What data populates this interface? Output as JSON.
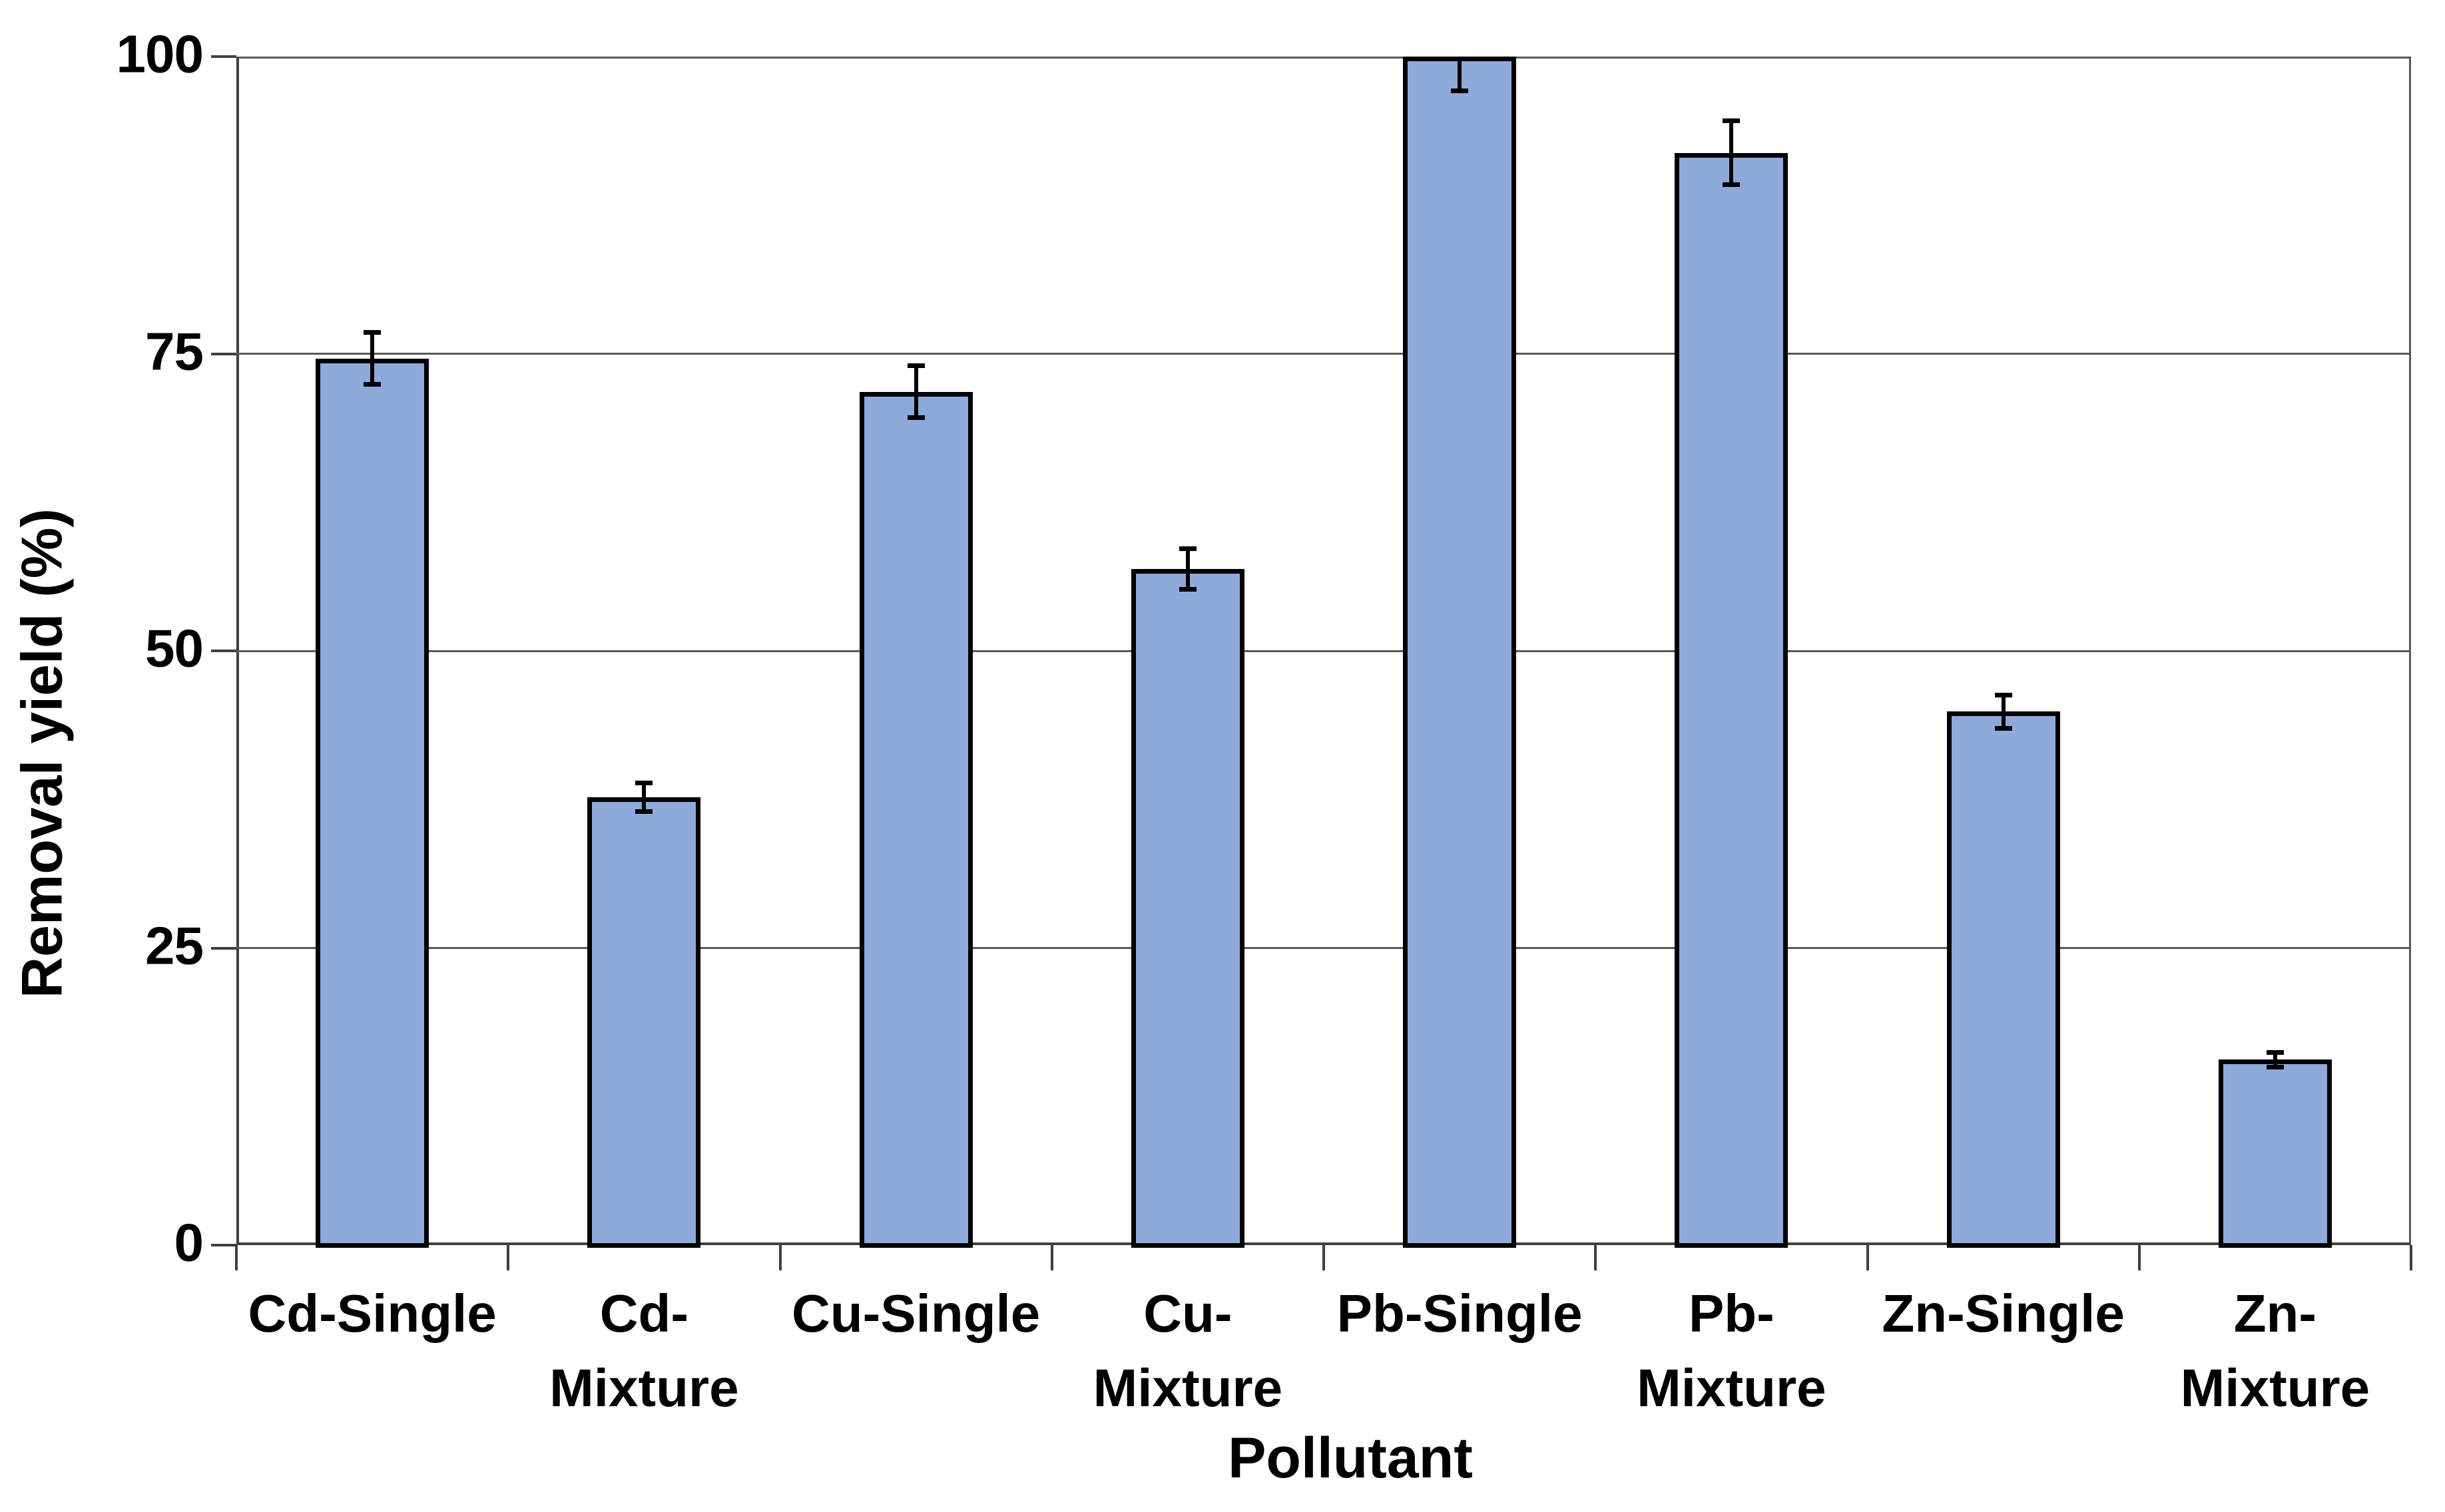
{
  "chart_data": {
    "type": "bar",
    "title": "",
    "xlabel": "Pollutant",
    "ylabel": "Removal yield (%)",
    "categories": [
      "Cd-Single",
      "Cd-Mixture",
      "Cu-Single",
      "Cu-Mixture",
      "Pb-Single",
      "Pb-Mixture",
      "Zn-Single",
      "Zn-Mixture"
    ],
    "category_label_lines": [
      [
        "Cd-Single"
      ],
      [
        "Cd-",
        "Mixture"
      ],
      [
        "Cu-Single"
      ],
      [
        "Cu-",
        "Mixture"
      ],
      [
        "Pb-Single"
      ],
      [
        "Pb-",
        "Mixture"
      ],
      [
        "Zn-Single"
      ],
      [
        "Zn-",
        "Mixture"
      ]
    ],
    "series": [
      {
        "name": "Removal yield",
        "values": [
          74.6,
          37.7,
          71.8,
          56.9,
          100,
          91.9,
          44.9,
          15.6
        ],
        "errors": [
          2.2,
          1.2,
          2.2,
          1.7,
          2.9,
          2.7,
          1.4,
          0.6
        ]
      }
    ],
    "ylim": [
      0,
      100
    ],
    "yticks": [
      "0",
      "25",
      "50",
      "75",
      "100"
    ],
    "ytick_values": [
      0,
      25,
      50,
      75,
      100
    ],
    "grid": "horizontal gridlines at 25, 50, 75, 100",
    "legend_position": "none",
    "error_bars": "plus-minus, capped, upper whisker of Pb-Single clipped at 100",
    "colors": {
      "bar_fill": "#8EAADB",
      "bar_border": "#000000",
      "error_bar": "#000000",
      "gridline": "#595959",
      "axis": "#3F3F3F",
      "text": "#000000",
      "background": "#FFFFFF"
    }
  }
}
